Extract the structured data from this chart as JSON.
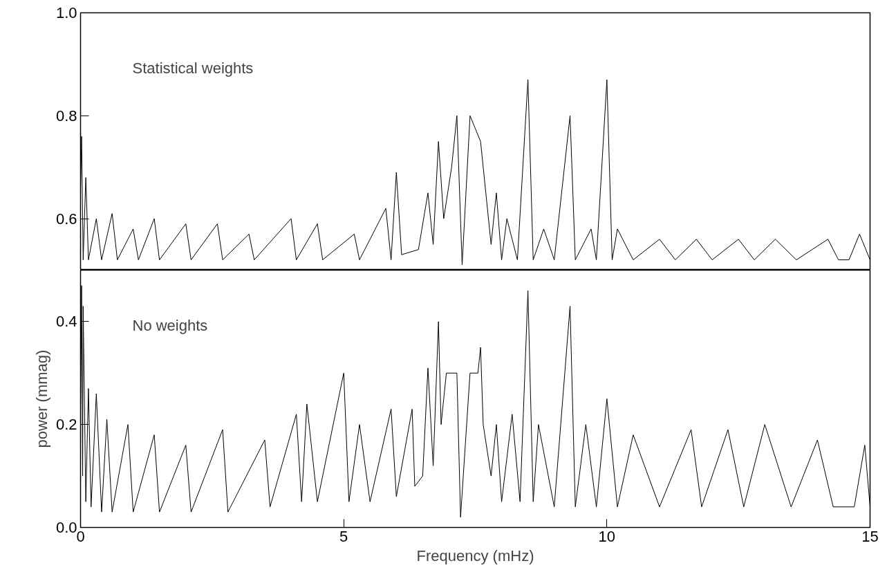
{
  "chart_data": [
    {
      "type": "line",
      "tick_labels": "y",
      "xlim": [
        0,
        15
      ],
      "ylim": [
        0.5,
        1.0
      ],
      "yticks": [
        0.6,
        0.8,
        {
          "value": 1.0,
          "label": "1.0"
        }
      ],
      "grid": false,
      "marker": "none",
      "line_style": "solid",
      "annotations": [
        "Statistical weights"
      ],
      "series": [
        {
          "color": "#000000",
          "x": [
            0,
            0.02,
            0.05,
            0.1,
            0.15,
            0.3,
            0.4,
            0.6,
            0.7,
            1.0,
            1.1,
            1.4,
            1.5,
            2.0,
            2.1,
            2.6,
            2.7,
            3.2,
            3.3,
            4.0,
            4.1,
            4.5,
            4.6,
            5.2,
            5.3,
            5.8,
            5.9,
            6.0,
            6.1,
            6.38,
            6.42,
            6.6,
            6.7,
            6.8,
            6.9,
            7.0,
            7.05,
            7.1,
            7.15,
            7.2,
            7.25,
            7.3,
            7.4,
            7.5,
            7.6,
            7.7,
            7.8,
            7.9,
            8.0,
            8.1,
            8.3,
            8.5,
            8.6,
            8.8,
            9.0,
            9.3,
            9.4,
            9.7,
            9.8,
            10.0,
            10.1,
            10.2,
            10.5,
            11.0,
            11.3,
            11.7,
            12.0,
            12.5,
            12.8,
            13.2,
            13.6,
            14.2,
            14.4,
            14.5,
            14.6,
            14.8,
            15.0
          ],
          "values": [
            0.66,
            0.76,
            0.52,
            0.68,
            0.52,
            0.6,
            0.52,
            0.61,
            0.52,
            0.58,
            0.52,
            0.6,
            0.52,
            0.59,
            0.52,
            0.59,
            0.52,
            0.57,
            0.52,
            0.6,
            0.52,
            0.59,
            0.52,
            0.57,
            0.52,
            0.62,
            0.52,
            0.69,
            0.53,
            null,
            0.54,
            0.65,
            0.55,
            0.75,
            0.6,
            null,
            0.7,
            null,
            0.8,
            null,
            0.51,
            null,
            0.8,
            null,
            0.75,
            null,
            0.55,
            0.65,
            0.52,
            0.6,
            0.52,
            0.87,
            0.52,
            0.58,
            0.52,
            0.8,
            0.52,
            0.58,
            0.52,
            0.87,
            0.52,
            0.58,
            0.52,
            0.56,
            0.52,
            0.56,
            0.52,
            0.56,
            0.52,
            0.56,
            0.52,
            0.56,
            0.52,
            null,
            0.52,
            0.57,
            0.52
          ]
        }
      ]
    },
    {
      "type": "line",
      "xlim": [
        0,
        15
      ],
      "ylim": [
        0.0,
        0.5
      ],
      "xticks": [
        0,
        5,
        10,
        15
      ],
      "yticks": [
        {
          "value": 0.0,
          "label": "0.0"
        },
        0.2,
        0.4
      ],
      "grid": false,
      "marker": "none",
      "line_style": "solid",
      "xlabel": "Frequency (mHz)",
      "ylabel": "power (mmag)",
      "annotations": [
        "No weights"
      ],
      "series": [
        {
          "color": "#000000",
          "x": [
            0,
            0.02,
            0.04,
            0.05,
            0.1,
            0.15,
            0.2,
            0.3,
            0.4,
            0.5,
            0.6,
            0.9,
            1.0,
            1.4,
            1.5,
            2.0,
            2.1,
            2.7,
            2.8,
            3.5,
            3.6,
            4.1,
            4.2,
            4.3,
            4.5,
            5.0,
            5.1,
            5.3,
            5.5,
            5.9,
            6.0,
            6.3,
            6.35,
            6.4,
            6.5,
            6.6,
            6.7,
            6.8,
            6.85,
            6.9,
            6.95,
            7.0,
            7.05,
            7.1,
            7.15,
            7.22,
            7.3,
            7.4,
            7.5,
            7.55,
            7.6,
            7.65,
            7.7,
            7.8,
            7.9,
            8.0,
            8.2,
            8.35,
            8.5,
            8.6,
            8.7,
            9.0,
            9.3,
            9.4,
            9.6,
            9.8,
            10.0,
            10.2,
            10.5,
            11.0,
            11.6,
            11.8,
            12.3,
            12.6,
            13.0,
            13.5,
            14.0,
            14.3,
            14.5,
            14.7,
            14.9,
            15.0
          ],
          "values": [
            0.22,
            0.47,
            0.1,
            0.43,
            0.05,
            0.27,
            0.04,
            0.26,
            0.03,
            0.21,
            0.03,
            0.2,
            0.03,
            0.18,
            0.03,
            0.16,
            0.03,
            0.19,
            0.03,
            0.17,
            0.04,
            0.22,
            0.05,
            0.24,
            0.05,
            0.3,
            0.05,
            0.2,
            0.05,
            0.23,
            0.06,
            0.23,
            0.08,
            null,
            0.1,
            0.31,
            0.12,
            0.4,
            0.2,
            null,
            0.3,
            null,
            0.3,
            null,
            0.3,
            0.02,
            null,
            0.3,
            null,
            0.3,
            0.35,
            0.2,
            null,
            0.1,
            0.2,
            0.05,
            0.22,
            0.05,
            0.46,
            0.05,
            0.2,
            0.04,
            0.43,
            0.04,
            0.2,
            0.04,
            0.25,
            0.04,
            0.18,
            0.04,
            0.19,
            0.04,
            0.19,
            0.04,
            0.2,
            0.04,
            0.17,
            0.04,
            null,
            0.04,
            0.16,
            0.04
          ]
        }
      ]
    }
  ]
}
